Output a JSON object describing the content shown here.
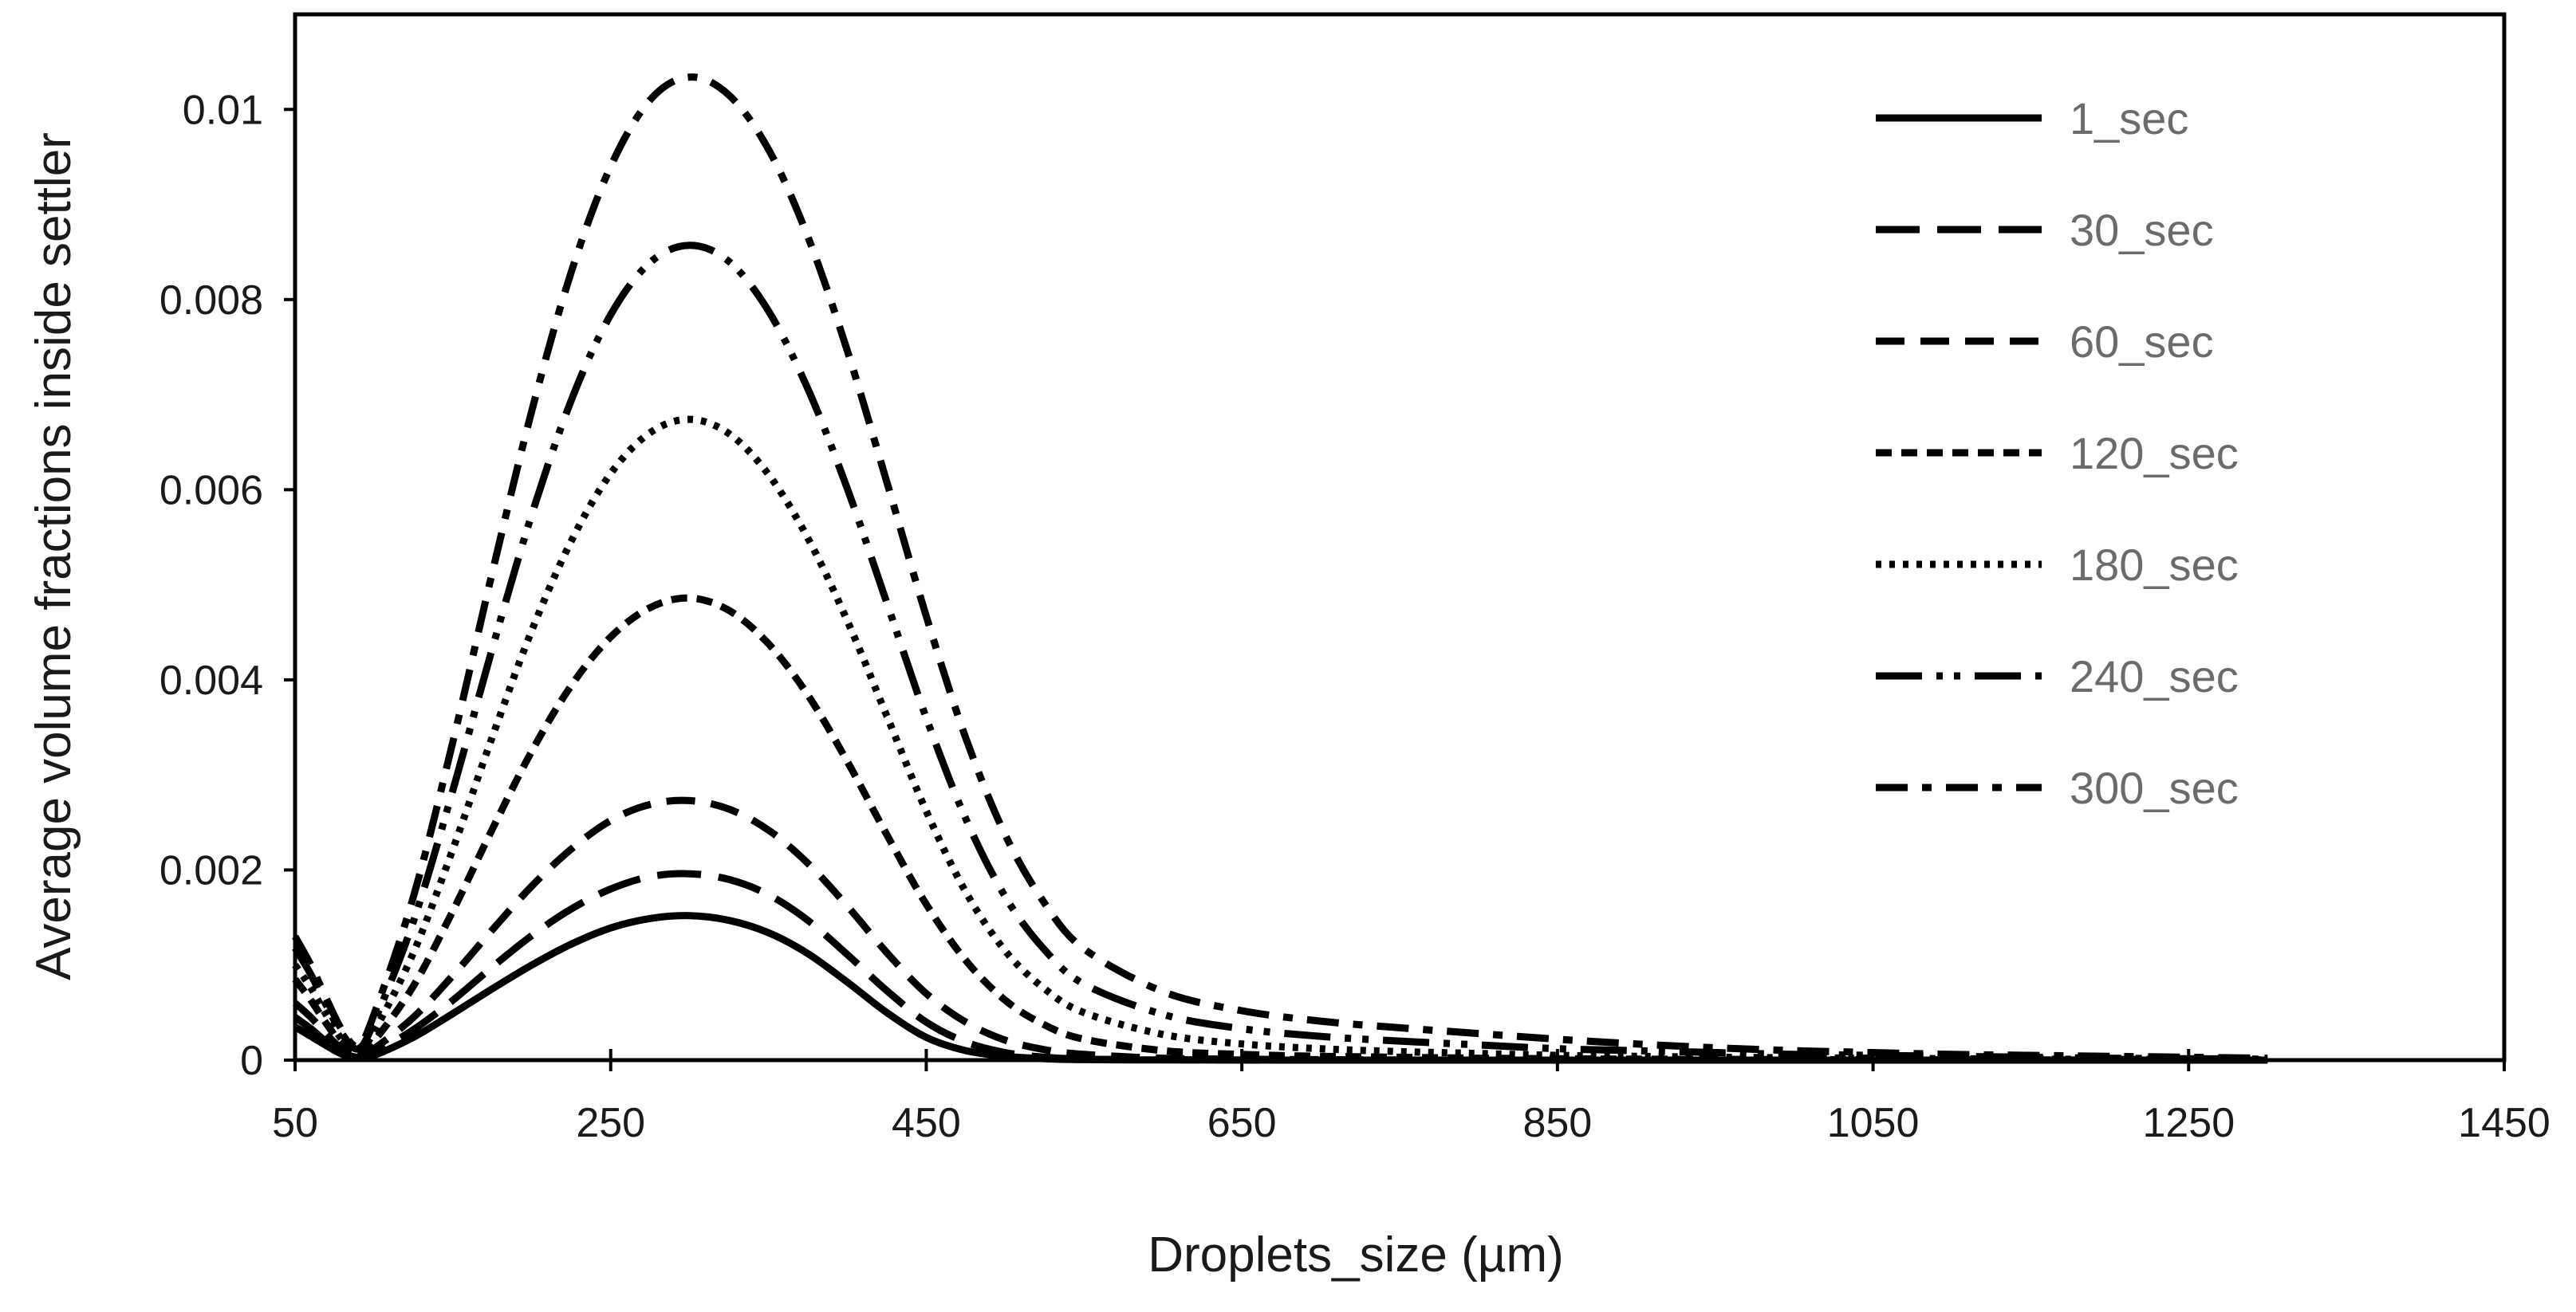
{
  "chart_data": {
    "type": "line",
    "title": "",
    "xlabel": "Droplets_size (µm)",
    "ylabel": "Average volume fractions inside settler",
    "xlim": [
      50,
      1450
    ],
    "ylim": [
      0,
      0.011
    ],
    "xticks": [
      50,
      250,
      450,
      650,
      850,
      1050,
      1250,
      1450
    ],
    "xtick_labels": [
      "50",
      "250",
      "450",
      "650",
      "850",
      "1050",
      "1250",
      "1450"
    ],
    "yticks": [
      0,
      0.002,
      0.004,
      0.006,
      0.008,
      0.01
    ],
    "ytick_labels": [
      "0",
      "0.002",
      "0.004",
      "0.006",
      "0.008",
      "0.01"
    ],
    "grid": false,
    "legend_position": "top-right",
    "x": [
      50,
      60,
      70,
      80,
      90,
      100,
      125,
      150,
      175,
      200,
      225,
      250,
      275,
      300,
      325,
      350,
      375,
      400,
      425,
      450,
      475,
      500,
      525,
      550,
      600,
      650,
      700,
      750,
      800,
      850,
      900,
      950,
      1000,
      1050,
      1100,
      1150,
      1200,
      1250,
      1300
    ],
    "series": [
      {
        "name": "1_sec",
        "dash": "solid",
        "values": [
          0.00035,
          0.00025,
          0.00015,
          6e-05,
          2e-05,
          5e-05,
          0.00024,
          0.00049,
          0.00075,
          0.001,
          0.00122,
          0.00139,
          0.00149,
          0.00152,
          0.00147,
          0.00134,
          0.00112,
          0.00082,
          0.0005,
          0.00024,
          0.0001,
          4e-05,
          1.5e-05,
          5e-06,
          2e-06,
          1e-06,
          0,
          0,
          0,
          0,
          0,
          0,
          0,
          0,
          0,
          0,
          0,
          0,
          0
        ]
      },
      {
        "name": "30_sec",
        "dash": "long-dash",
        "values": [
          0.00045,
          0.00033,
          0.00019,
          8e-05,
          3e-05,
          8e-05,
          0.00032,
          0.00063,
          0.00098,
          0.00131,
          0.00159,
          0.0018,
          0.00193,
          0.00196,
          0.0019,
          0.00174,
          0.00147,
          0.00111,
          0.00073,
          0.0004,
          0.00019,
          8e-05,
          3e-05,
          1e-05,
          4e-06,
          1e-06,
          0,
          0,
          0,
          0,
          0,
          0,
          0,
          0,
          0,
          0,
          0,
          0,
          0
        ]
      },
      {
        "name": "60_sec",
        "dash": "dash",
        "values": [
          0.0006,
          0.00045,
          0.00027,
          0.00011,
          4e-05,
          0.00012,
          0.00045,
          0.00089,
          0.00137,
          0.00183,
          0.00222,
          0.00252,
          0.00269,
          0.00273,
          0.00264,
          0.00242,
          0.00207,
          0.00162,
          0.00113,
          0.0007,
          0.0004,
          0.00021,
          0.00011,
          6e-05,
          2e-05,
          1e-05,
          5e-06,
          2e-06,
          0,
          0,
          0,
          0,
          0,
          0,
          0,
          0,
          0,
          0,
          0
        ]
      },
      {
        "name": "120_sec",
        "dash": "short-dash",
        "values": [
          0.00085,
          0.00063,
          0.00038,
          0.00016,
          6e-05,
          0.0002,
          0.00078,
          0.00157,
          0.00243,
          0.00325,
          0.00394,
          0.00445,
          0.00476,
          0.00486,
          0.00473,
          0.00438,
          0.00384,
          0.00314,
          0.00237,
          0.00164,
          0.00105,
          0.00063,
          0.00037,
          0.00022,
          0.0001,
          6e-05,
          4e-05,
          3e-05,
          2e-05,
          1.5e-05,
          1e-05,
          8e-06,
          6e-06,
          4e-06,
          3e-06,
          2e-06,
          1e-06,
          0,
          0
        ]
      },
      {
        "name": "180_sec",
        "dash": "dot",
        "values": [
          0.001,
          0.00076,
          0.00047,
          0.00021,
          9e-05,
          0.0003,
          0.00113,
          0.00222,
          0.0034,
          0.00452,
          0.00546,
          0.00617,
          0.0066,
          0.00674,
          0.00659,
          0.00616,
          0.00549,
          0.00462,
          0.00362,
          0.00262,
          0.00177,
          0.00115,
          0.00075,
          0.0005,
          0.00027,
          0.00017,
          0.00012,
          9e-05,
          7e-05,
          5e-05,
          4e-05,
          3e-05,
          2.5e-05,
          2e-05,
          1.5e-05,
          1e-05,
          8e-06,
          5e-06,
          3e-06
        ]
      },
      {
        "name": "240_sec",
        "dash": "long-dash-dot-dot",
        "values": [
          0.00118,
          0.0009,
          0.00057,
          0.00027,
          0.00012,
          0.0004,
          0.00146,
          0.00284,
          0.00433,
          0.00574,
          0.00694,
          0.00784,
          0.00839,
          0.00857,
          0.0084,
          0.00788,
          0.00706,
          0.00601,
          0.00481,
          0.0036,
          0.00254,
          0.00172,
          0.00116,
          0.0008,
          0.00048,
          0.00033,
          0.00025,
          0.0002,
          0.00016,
          0.00012,
          0.0001,
          8e-05,
          6e-05,
          5e-05,
          4e-05,
          3e-05,
          2e-05,
          1.5e-05,
          1e-05
        ]
      },
      {
        "name": "300_sec",
        "dash": "dash-dot",
        "values": [
          0.0013,
          0.001,
          0.00064,
          0.00031,
          0.00015,
          0.00048,
          0.00172,
          0.00335,
          0.00513,
          0.00683,
          0.00829,
          0.0094,
          0.0101,
          0.01034,
          0.01015,
          0.00958,
          0.00866,
          0.00746,
          0.00608,
          0.00467,
          0.00339,
          0.00237,
          0.00165,
          0.00117,
          0.00072,
          0.00052,
          0.00041,
          0.00034,
          0.00028,
          0.00022,
          0.00017,
          0.00013,
          0.0001,
          8e-05,
          6e-05,
          5e-05,
          4e-05,
          3e-05,
          2e-05
        ]
      }
    ]
  }
}
